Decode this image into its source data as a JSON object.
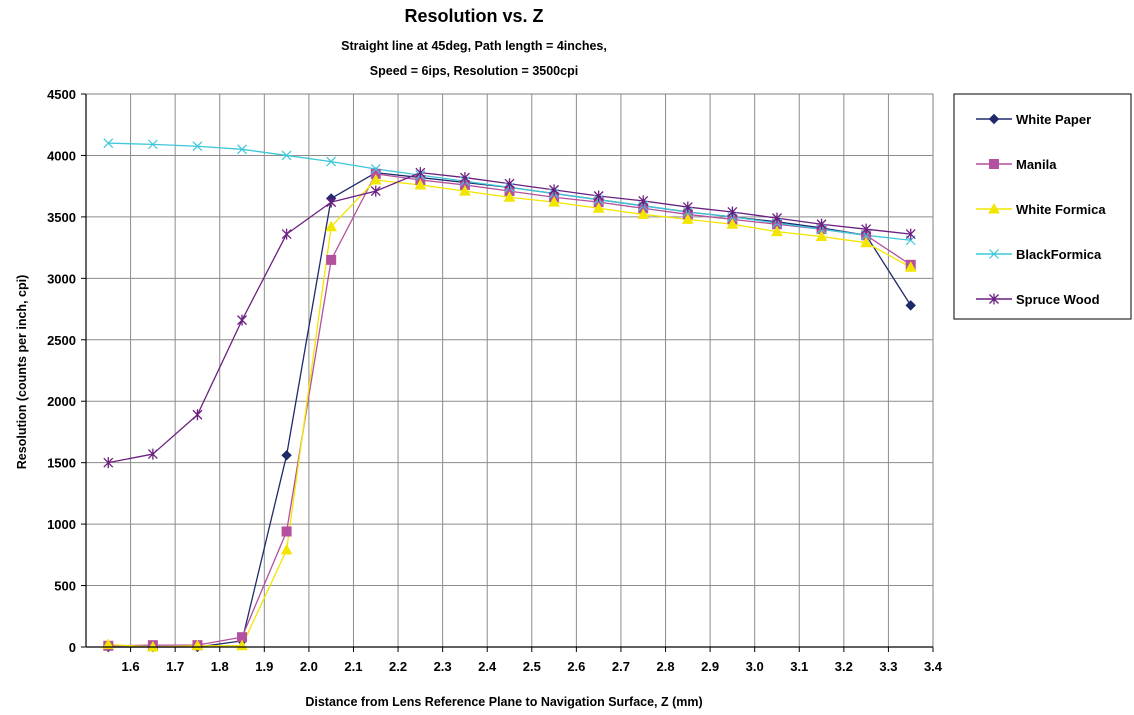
{
  "chart_data": {
    "type": "line",
    "title": "Resolution vs. Z",
    "subtitle_line1": "Straight line at 45deg, Path length = 4inches,",
    "subtitle_line2": "Speed = 6ips, Resolution = 3500cpi",
    "xlabel": "Distance from Lens Reference Plane to Navigation Surface, Z (mm)",
    "ylabel": "Resolution (counts per inch, cpi)",
    "xlim": [
      1.5,
      3.4
    ],
    "ylim": [
      0,
      4500
    ],
    "x_ticks": [
      "1.6",
      "1.7",
      "1.8",
      "1.9",
      "2.0",
      "2.1",
      "2.2",
      "2.3",
      "2.4",
      "2.5",
      "2.6",
      "2.7",
      "2.8",
      "2.9",
      "3.0",
      "3.1",
      "3.2",
      "3.3",
      "3.4"
    ],
    "y_ticks": [
      "0",
      "500",
      "1000",
      "1500",
      "2000",
      "2500",
      "3000",
      "3500",
      "4000",
      "4500"
    ],
    "grid": true,
    "legend_position": "right",
    "x": [
      1.55,
      1.65,
      1.75,
      1.85,
      1.95,
      2.05,
      2.15,
      2.25,
      2.35,
      2.45,
      2.55,
      2.65,
      2.75,
      2.85,
      2.95,
      3.05,
      3.15,
      3.25,
      3.35
    ],
    "series": [
      {
        "name": "White Paper",
        "color": "#1f2a6b",
        "marker": "diamond",
        "values": [
          0,
          0,
          0,
          50,
          1560,
          3650,
          3860,
          3820,
          3780,
          3740,
          3690,
          3640,
          3590,
          3540,
          3500,
          3460,
          3410,
          3350,
          2780
        ]
      },
      {
        "name": "Manila",
        "color": "#b5509f",
        "marker": "square",
        "values": [
          10,
          15,
          15,
          80,
          940,
          3150,
          3850,
          3800,
          3760,
          3710,
          3660,
          3620,
          3570,
          3520,
          3480,
          3440,
          3400,
          3350,
          3110
        ]
      },
      {
        "name": "White Formica",
        "color": "#f2e600",
        "marker": "triangle",
        "values": [
          20,
          0,
          10,
          10,
          790,
          3420,
          3800,
          3760,
          3710,
          3660,
          3620,
          3570,
          3520,
          3480,
          3440,
          3380,
          3340,
          3290,
          3090
        ]
      },
      {
        "name": "BlackFormica",
        "color": "#3cc8d8",
        "marker": "x",
        "values": [
          4100,
          4090,
          4075,
          4050,
          4000,
          3950,
          3890,
          3840,
          3790,
          3740,
          3690,
          3640,
          3590,
          3540,
          3500,
          3450,
          3400,
          3350,
          3310
        ]
      },
      {
        "name": "Spruce Wood",
        "color": "#6b1f80",
        "marker": "star",
        "values": [
          1500,
          1570,
          1890,
          2660,
          3360,
          3620,
          3710,
          3860,
          3820,
          3770,
          3720,
          3670,
          3630,
          3580,
          3540,
          3490,
          3440,
          3400,
          3360
        ]
      }
    ]
  }
}
